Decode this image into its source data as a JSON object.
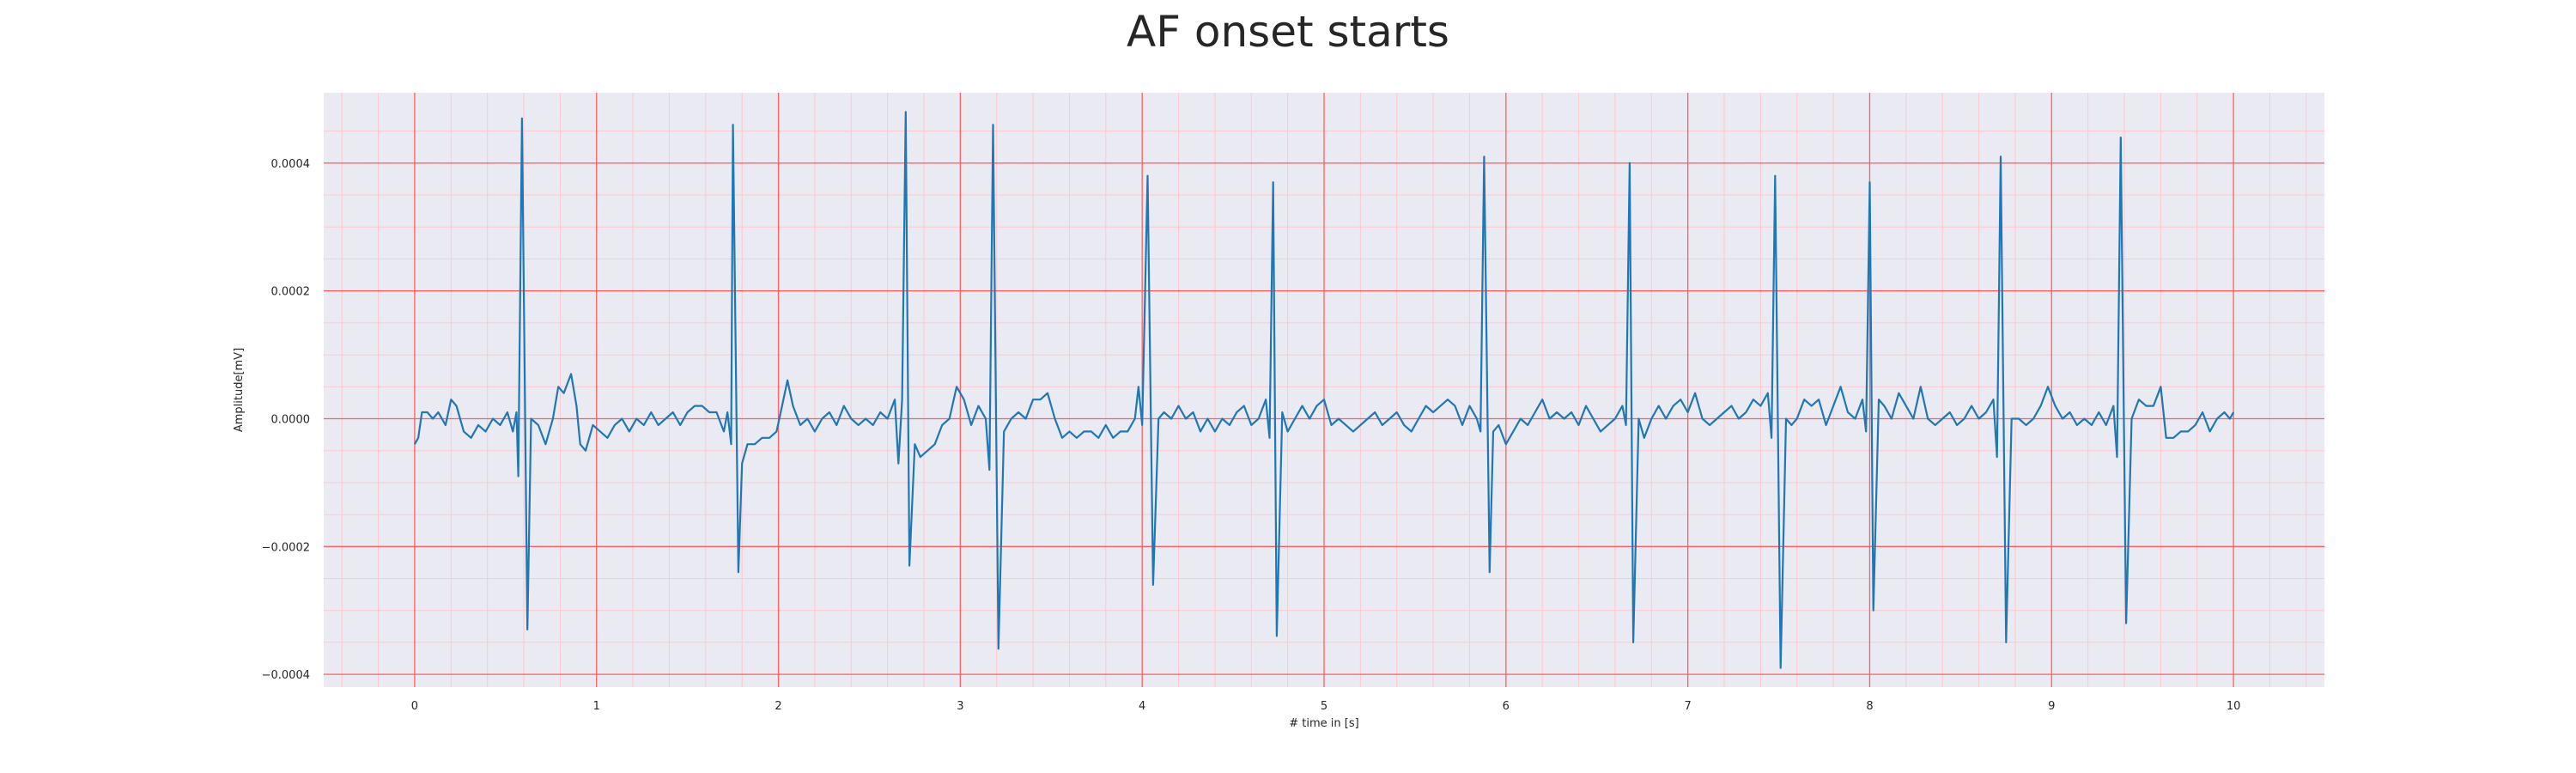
{
  "chart_data": {
    "type": "line",
    "title": "AF onset starts",
    "xlabel": "# time in [s]",
    "ylabel": "Amplitude[mV]",
    "xlim": [
      -0.5,
      10.5
    ],
    "ylim": [
      -0.00042,
      0.00051
    ],
    "x_ticks": [
      "0",
      "1",
      "2",
      "3",
      "4",
      "5",
      "6",
      "7",
      "8",
      "9",
      "10"
    ],
    "y_ticks": [
      "−0.0004",
      "−0.0002",
      "0.0000",
      "0.0002",
      "0.0004"
    ],
    "y_tick_values": [
      -0.0004,
      -0.0002,
      0,
      0.0002,
      0.0004
    ],
    "grid": true,
    "minor_grid": true,
    "colors": {
      "plot_background": "#eaeaf2",
      "major_grid": "#ff5f5f",
      "minor_grid": "#ffc8cc",
      "line": "#1f77b4"
    },
    "series": [
      {
        "points": [
          [
            0.0,
            -4e-05
          ],
          [
            0.02,
            -3e-05
          ],
          [
            0.04,
            1e-05
          ],
          [
            0.07,
            1e-05
          ],
          [
            0.1,
            0.0
          ],
          [
            0.13,
            1e-05
          ],
          [
            0.17,
            -1e-05
          ],
          [
            0.2,
            3e-05
          ],
          [
            0.23,
            2e-05
          ],
          [
            0.27,
            -2e-05
          ],
          [
            0.31,
            -3e-05
          ],
          [
            0.35,
            -1e-05
          ],
          [
            0.39,
            -2e-05
          ],
          [
            0.43,
            0.0
          ],
          [
            0.47,
            -1e-05
          ],
          [
            0.51,
            1e-05
          ],
          [
            0.54,
            -2e-05
          ],
          [
            0.56,
            1e-05
          ],
          [
            0.57,
            -9e-05
          ],
          [
            0.59,
            0.00047
          ],
          [
            0.62,
            -0.00033
          ],
          [
            0.64,
            0.0
          ],
          [
            0.68,
            -1e-05
          ],
          [
            0.72,
            -4e-05
          ],
          [
            0.76,
            0.0
          ],
          [
            0.79,
            5e-05
          ],
          [
            0.82,
            4e-05
          ],
          [
            0.86,
            7e-05
          ],
          [
            0.89,
            2e-05
          ],
          [
            0.91,
            -4e-05
          ],
          [
            0.94,
            -5e-05
          ],
          [
            0.98,
            -1e-05
          ],
          [
            1.02,
            -2e-05
          ],
          [
            1.06,
            -3e-05
          ],
          [
            1.1,
            -1e-05
          ],
          [
            1.14,
            0.0
          ],
          [
            1.18,
            -2e-05
          ],
          [
            1.22,
            0.0
          ],
          [
            1.26,
            -1e-05
          ],
          [
            1.3,
            1e-05
          ],
          [
            1.34,
            -1e-05
          ],
          [
            1.38,
            0.0
          ],
          [
            1.42,
            1e-05
          ],
          [
            1.46,
            -1e-05
          ],
          [
            1.5,
            1e-05
          ],
          [
            1.54,
            2e-05
          ],
          [
            1.58,
            2e-05
          ],
          [
            1.62,
            1e-05
          ],
          [
            1.66,
            1e-05
          ],
          [
            1.7,
            -2e-05
          ],
          [
            1.72,
            1e-05
          ],
          [
            1.74,
            -4e-05
          ],
          [
            1.75,
            0.00046
          ],
          [
            1.78,
            -0.00024
          ],
          [
            1.8,
            -7e-05
          ],
          [
            1.83,
            -4e-05
          ],
          [
            1.87,
            -4e-05
          ],
          [
            1.91,
            -3e-05
          ],
          [
            1.95,
            -3e-05
          ],
          [
            1.99,
            -2e-05
          ],
          [
            2.02,
            2e-05
          ],
          [
            2.05,
            6e-05
          ],
          [
            2.08,
            2e-05
          ],
          [
            2.12,
            -1e-05
          ],
          [
            2.16,
            0.0
          ],
          [
            2.2,
            -2e-05
          ],
          [
            2.24,
            0.0
          ],
          [
            2.28,
            1e-05
          ],
          [
            2.32,
            -1e-05
          ],
          [
            2.36,
            2e-05
          ],
          [
            2.4,
            0.0
          ],
          [
            2.44,
            -1e-05
          ],
          [
            2.48,
            0.0
          ],
          [
            2.52,
            -1e-05
          ],
          [
            2.56,
            1e-05
          ],
          [
            2.6,
            0.0
          ],
          [
            2.64,
            3e-05
          ],
          [
            2.66,
            -7e-05
          ],
          [
            2.68,
            3e-05
          ],
          [
            2.7,
            0.00048
          ],
          [
            2.72,
            -0.00023
          ],
          [
            2.75,
            -4e-05
          ],
          [
            2.78,
            -6e-05
          ],
          [
            2.82,
            -5e-05
          ],
          [
            2.86,
            -4e-05
          ],
          [
            2.9,
            -1e-05
          ],
          [
            2.94,
            0.0
          ],
          [
            2.98,
            5e-05
          ],
          [
            3.02,
            3e-05
          ],
          [
            3.06,
            -1e-05
          ],
          [
            3.1,
            2e-05
          ],
          [
            3.14,
            0.0
          ],
          [
            3.16,
            -8e-05
          ],
          [
            3.18,
            0.00046
          ],
          [
            3.21,
            -0.00036
          ],
          [
            3.24,
            -2e-05
          ],
          [
            3.28,
            0.0
          ],
          [
            3.32,
            1e-05
          ],
          [
            3.36,
            0.0
          ],
          [
            3.4,
            3e-05
          ],
          [
            3.44,
            3e-05
          ],
          [
            3.48,
            4e-05
          ],
          [
            3.52,
            0.0
          ],
          [
            3.56,
            -3e-05
          ],
          [
            3.6,
            -2e-05
          ],
          [
            3.64,
            -3e-05
          ],
          [
            3.68,
            -2e-05
          ],
          [
            3.72,
            -2e-05
          ],
          [
            3.76,
            -3e-05
          ],
          [
            3.8,
            -1e-05
          ],
          [
            3.84,
            -3e-05
          ],
          [
            3.88,
            -2e-05
          ],
          [
            3.92,
            -2e-05
          ],
          [
            3.96,
            0.0
          ],
          [
            3.98,
            5e-05
          ],
          [
            4.0,
            -1e-05
          ],
          [
            4.03,
            0.00038
          ],
          [
            4.06,
            -0.00026
          ],
          [
            4.09,
            0.0
          ],
          [
            4.12,
            1e-05
          ],
          [
            4.16,
            0.0
          ],
          [
            4.2,
            2e-05
          ],
          [
            4.24,
            0.0
          ],
          [
            4.28,
            1e-05
          ],
          [
            4.32,
            -2e-05
          ],
          [
            4.36,
            0.0
          ],
          [
            4.4,
            -2e-05
          ],
          [
            4.44,
            0.0
          ],
          [
            4.48,
            -1e-05
          ],
          [
            4.52,
            1e-05
          ],
          [
            4.56,
            2e-05
          ],
          [
            4.6,
            -1e-05
          ],
          [
            4.64,
            0.0
          ],
          [
            4.68,
            3e-05
          ],
          [
            4.7,
            -3e-05
          ],
          [
            4.72,
            0.00037
          ],
          [
            4.74,
            -0.00034
          ],
          [
            4.77,
            1e-05
          ],
          [
            4.8,
            -2e-05
          ],
          [
            4.84,
            0.0
          ],
          [
            4.88,
            2e-05
          ],
          [
            4.92,
            0.0
          ],
          [
            4.96,
            2e-05
          ],
          [
            5.0,
            3e-05
          ],
          [
            5.04,
            -1e-05
          ],
          [
            5.08,
            0.0
          ],
          [
            5.12,
            -1e-05
          ],
          [
            5.16,
            -2e-05
          ],
          [
            5.2,
            -1e-05
          ],
          [
            5.24,
            0.0
          ],
          [
            5.28,
            1e-05
          ],
          [
            5.32,
            -1e-05
          ],
          [
            5.36,
            0.0
          ],
          [
            5.4,
            1e-05
          ],
          [
            5.44,
            -1e-05
          ],
          [
            5.48,
            -2e-05
          ],
          [
            5.52,
            0.0
          ],
          [
            5.56,
            2e-05
          ],
          [
            5.6,
            1e-05
          ],
          [
            5.64,
            2e-05
          ],
          [
            5.68,
            3e-05
          ],
          [
            5.72,
            2e-05
          ],
          [
            5.76,
            -1e-05
          ],
          [
            5.8,
            2e-05
          ],
          [
            5.84,
            0.0
          ],
          [
            5.86,
            -2e-05
          ],
          [
            5.88,
            0.00041
          ],
          [
            5.91,
            -0.00024
          ],
          [
            5.93,
            -2e-05
          ],
          [
            5.96,
            -1e-05
          ],
          [
            6.0,
            -4e-05
          ],
          [
            6.04,
            -2e-05
          ],
          [
            6.08,
            0.0
          ],
          [
            6.12,
            -1e-05
          ],
          [
            6.16,
            1e-05
          ],
          [
            6.2,
            3e-05
          ],
          [
            6.24,
            0.0
          ],
          [
            6.28,
            1e-05
          ],
          [
            6.32,
            0.0
          ],
          [
            6.36,
            1e-05
          ],
          [
            6.4,
            -1e-05
          ],
          [
            6.44,
            2e-05
          ],
          [
            6.48,
            0.0
          ],
          [
            6.52,
            -2e-05
          ],
          [
            6.56,
            -1e-05
          ],
          [
            6.6,
            0.0
          ],
          [
            6.64,
            2e-05
          ],
          [
            6.66,
            -1e-05
          ],
          [
            6.68,
            0.0004
          ],
          [
            6.7,
            -0.00035
          ],
          [
            6.73,
            0.0
          ],
          [
            6.76,
            -3e-05
          ],
          [
            6.8,
            0.0
          ],
          [
            6.84,
            2e-05
          ],
          [
            6.88,
            0.0
          ],
          [
            6.92,
            2e-05
          ],
          [
            6.96,
            3e-05
          ],
          [
            7.0,
            1e-05
          ],
          [
            7.04,
            4e-05
          ],
          [
            7.08,
            0.0
          ],
          [
            7.12,
            -1e-05
          ],
          [
            7.16,
            0.0
          ],
          [
            7.2,
            1e-05
          ],
          [
            7.24,
            2e-05
          ],
          [
            7.28,
            0.0
          ],
          [
            7.32,
            1e-05
          ],
          [
            7.36,
            3e-05
          ],
          [
            7.4,
            2e-05
          ],
          [
            7.44,
            4e-05
          ],
          [
            7.46,
            -3e-05
          ],
          [
            7.48,
            0.00038
          ],
          [
            7.51,
            -0.00039
          ],
          [
            7.54,
            0.0
          ],
          [
            7.57,
            -1e-05
          ],
          [
            7.6,
            0.0
          ],
          [
            7.64,
            3e-05
          ],
          [
            7.68,
            2e-05
          ],
          [
            7.72,
            3e-05
          ],
          [
            7.76,
            -1e-05
          ],
          [
            7.8,
            2e-05
          ],
          [
            7.84,
            5e-05
          ],
          [
            7.88,
            1e-05
          ],
          [
            7.92,
            0.0
          ],
          [
            7.96,
            3e-05
          ],
          [
            7.98,
            -2e-05
          ],
          [
            8.0,
            0.00037
          ],
          [
            8.02,
            -0.0003
          ],
          [
            8.05,
            3e-05
          ],
          [
            8.08,
            2e-05
          ],
          [
            8.12,
            0.0
          ],
          [
            8.16,
            4e-05
          ],
          [
            8.2,
            2e-05
          ],
          [
            8.24,
            0.0
          ],
          [
            8.28,
            5e-05
          ],
          [
            8.32,
            0.0
          ],
          [
            8.36,
            -1e-05
          ],
          [
            8.4,
            0.0
          ],
          [
            8.44,
            1e-05
          ],
          [
            8.48,
            -1e-05
          ],
          [
            8.52,
            0.0
          ],
          [
            8.56,
            2e-05
          ],
          [
            8.6,
            0.0
          ],
          [
            8.64,
            1e-05
          ],
          [
            8.68,
            3e-05
          ],
          [
            8.7,
            -6e-05
          ],
          [
            8.72,
            0.00041
          ],
          [
            8.75,
            -0.00035
          ],
          [
            8.78,
            0.0
          ],
          [
            8.82,
            0.0
          ],
          [
            8.86,
            -1e-05
          ],
          [
            8.9,
            0.0
          ],
          [
            8.94,
            2e-05
          ],
          [
            8.98,
            5e-05
          ],
          [
            9.02,
            2e-05
          ],
          [
            9.06,
            0.0
          ],
          [
            9.1,
            1e-05
          ],
          [
            9.14,
            -1e-05
          ],
          [
            9.18,
            0.0
          ],
          [
            9.22,
            -1e-05
          ],
          [
            9.26,
            1e-05
          ],
          [
            9.3,
            -1e-05
          ],
          [
            9.34,
            2e-05
          ],
          [
            9.36,
            -6e-05
          ],
          [
            9.38,
            0.00044
          ],
          [
            9.41,
            -0.00032
          ],
          [
            9.44,
            0.0
          ],
          [
            9.48,
            3e-05
          ],
          [
            9.52,
            2e-05
          ],
          [
            9.56,
            2e-05
          ],
          [
            9.6,
            5e-05
          ],
          [
            9.63,
            -3e-05
          ],
          [
            9.67,
            -3e-05
          ],
          [
            9.71,
            -2e-05
          ],
          [
            9.75,
            -2e-05
          ],
          [
            9.79,
            -1e-05
          ],
          [
            9.83,
            1e-05
          ],
          [
            9.87,
            -2e-05
          ],
          [
            9.91,
            0.0
          ],
          [
            9.95,
            1e-05
          ],
          [
            9.98,
            0.0
          ],
          [
            10.0,
            1e-05
          ]
        ]
      }
    ]
  }
}
